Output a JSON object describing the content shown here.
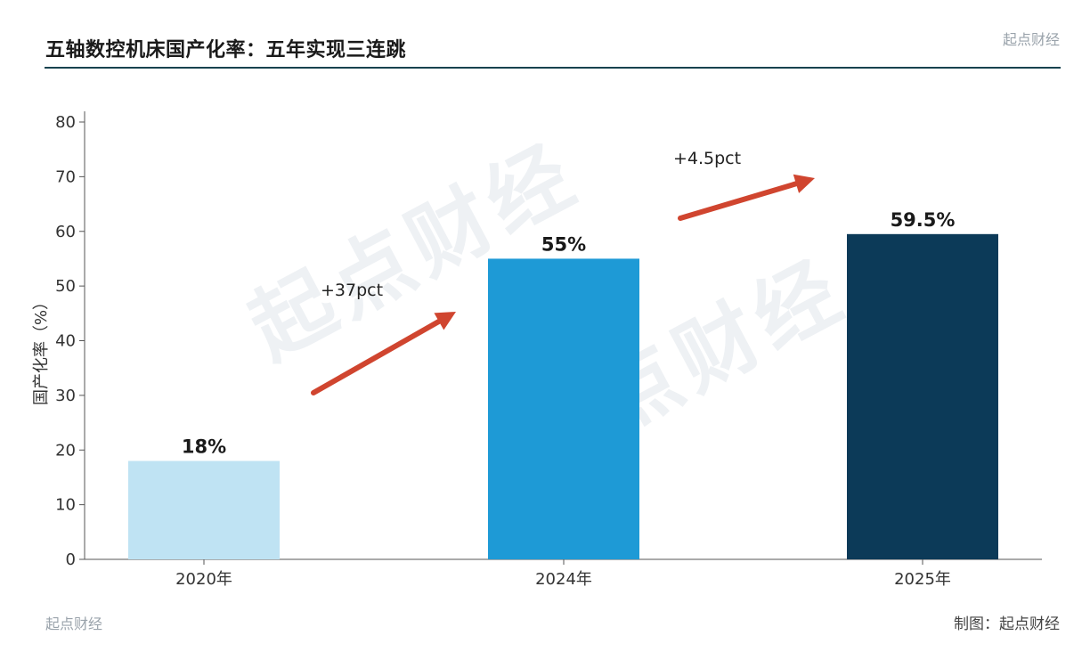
{
  "header": {
    "title": "五轴数控机床国产化率：五年实现三连跳",
    "brand": "起点财经"
  },
  "footer": {
    "brand": "起点财经",
    "credit": "制图：起点财经"
  },
  "watermark": "起点财经",
  "colors": {
    "rule": "#16424f",
    "bar_2020": "#bfe3f3",
    "bar_2024": "#1e9ad6",
    "bar_2025": "#0c3a58",
    "arrow": "#d0452f"
  },
  "chart_data": {
    "type": "bar",
    "categories": [
      "2020年",
      "2024年",
      "2025年"
    ],
    "values": [
      18,
      55,
      59.5
    ],
    "value_labels": [
      "18%",
      "55%",
      "59.5%"
    ],
    "bar_colors": [
      "#bfe3f3",
      "#1e9ad6",
      "#0c3a58"
    ],
    "ylabel": "国产化率（%）",
    "ylim": [
      0,
      80
    ],
    "yticks": [
      0,
      10,
      20,
      30,
      40,
      50,
      60,
      70,
      80
    ],
    "grid": false,
    "annotations": [
      {
        "text": "+37pct",
        "from": "2020年",
        "to": "2024年"
      },
      {
        "text": "+4.5pct",
        "from": "2024年",
        "to": "2025年"
      }
    ]
  }
}
